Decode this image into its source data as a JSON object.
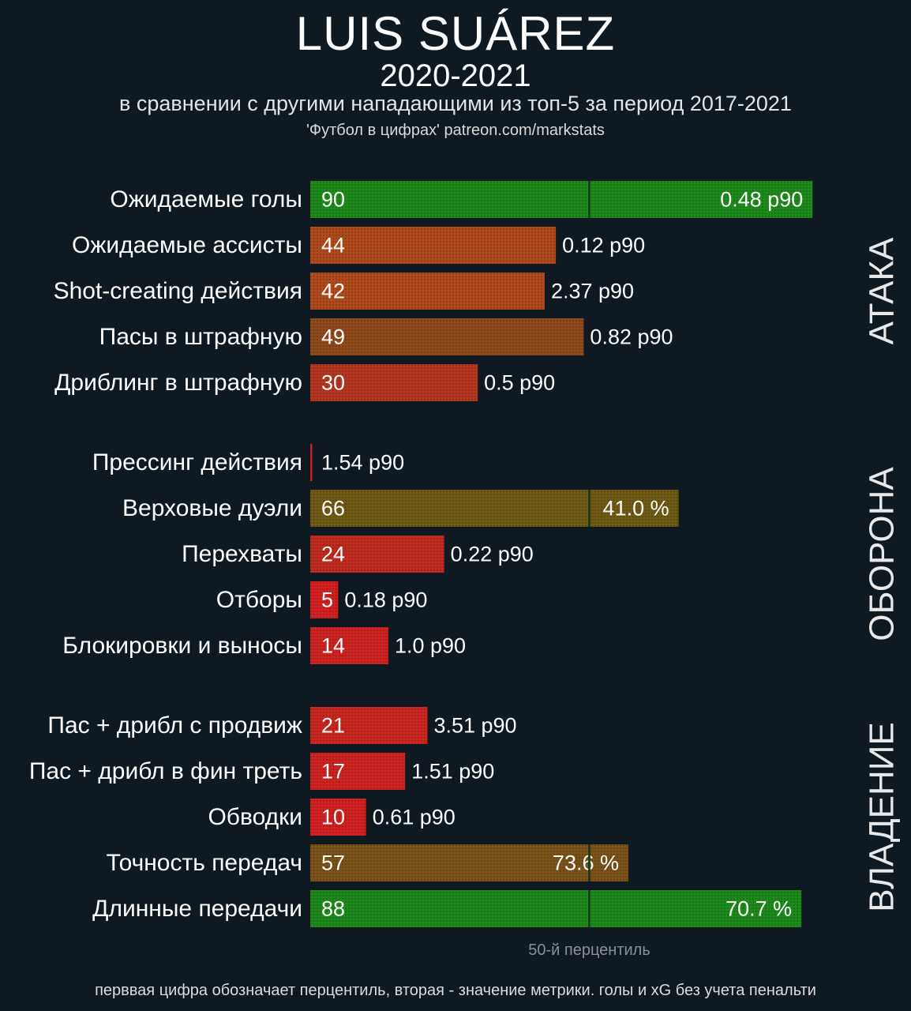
{
  "header": {
    "title": "LUIS SUÁREZ",
    "season": "2020-2021",
    "subtitle": "в сравнении с другими нападающими из топ-5 за период 2017-2021",
    "source": "'Футбол в цифрах' patreon.com/markstats"
  },
  "footnote": "перввая цифра обозначает перцентиль, вторая - значение метрики. голы и xG без учета пенальти",
  "chart_data": {
    "type": "bar",
    "orientation": "horizontal",
    "xlim": [
      0,
      100
    ],
    "median_label": "50-й перцентиль",
    "median_value": 50,
    "groups": [
      {
        "name": "АТАКА",
        "items": [
          {
            "label": "Ожидаемые голы",
            "percentile": 90,
            "value": "0.48 p90",
            "color": "#1f8a1c"
          },
          {
            "label": "Ожидаемые ассисты",
            "percentile": 44,
            "value": "0.12 p90",
            "color": "#b04a1c"
          },
          {
            "label": "Shot-creating действия",
            "percentile": 42,
            "value": "2.37 p90",
            "color": "#b04a1c"
          },
          {
            "label": "Пасы в штрафную",
            "percentile": 49,
            "value": "0.82 p90",
            "color": "#8e4a1a"
          },
          {
            "label": "Дриблинг в штрафную",
            "percentile": 30,
            "value": "0.5 p90",
            "color": "#b5361e"
          }
        ]
      },
      {
        "name": "ОБОРОНА",
        "items": [
          {
            "label": "Прессинг действия",
            "percentile": 0,
            "value": "1.54 p90",
            "color": "#c42020"
          },
          {
            "label": "Верховые дуэли",
            "percentile": 66,
            "value": "41.0 %",
            "color": "#6e5a14"
          },
          {
            "label": "Перехваты",
            "percentile": 24,
            "value": "0.22 p90",
            "color": "#c02a1e"
          },
          {
            "label": "Отборы",
            "percentile": 5,
            "value": "0.18 p90",
            "color": "#d02020"
          },
          {
            "label": "Блокировки и выносы",
            "percentile": 14,
            "value": "1.0 p90",
            "color": "#cc2320"
          }
        ]
      },
      {
        "name": "ВЛАДЕНИЕ",
        "items": [
          {
            "label": "Пас + дрибл с продвиж",
            "percentile": 21,
            "value": "3.51 p90",
            "color": "#c8261f"
          },
          {
            "label": "Пас + дрибл в фин треть",
            "percentile": 17,
            "value": "1.51 p90",
            "color": "#cc2320"
          },
          {
            "label": "Обводки",
            "percentile": 10,
            "value": "0.61 p90",
            "color": "#d02020"
          },
          {
            "label": "Точность передач",
            "percentile": 57,
            "value": "73.6 %",
            "color": "#7a5118"
          },
          {
            "label": "Длинные передачи",
            "percentile": 88,
            "value": "70.7 %",
            "color": "#1f8a1c"
          }
        ]
      }
    ]
  }
}
